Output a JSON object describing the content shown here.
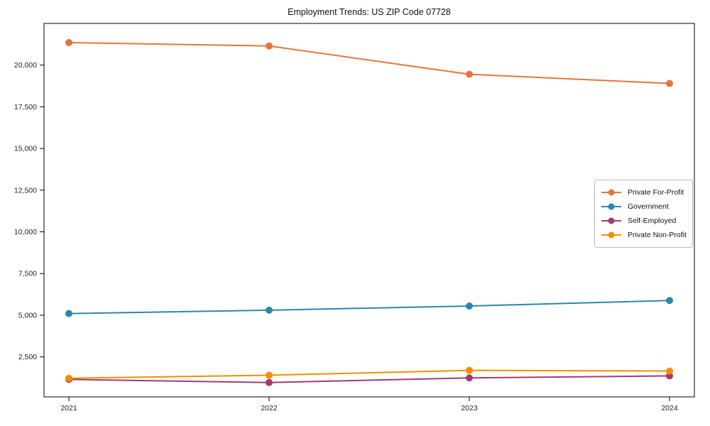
{
  "chart_data": {
    "type": "line",
    "title": "Employment Trends: US ZIP Code 07728",
    "xlabel": "",
    "ylabel": "",
    "x": [
      2021,
      2022,
      2023,
      2024
    ],
    "xtick_labels": [
      "2021",
      "2022",
      "2023",
      "2024"
    ],
    "yticks": [
      2500,
      5000,
      7500,
      10000,
      12500,
      15000,
      17500,
      20000
    ],
    "ytick_labels": [
      "2,500",
      "5,000",
      "7,500",
      "10,000",
      "12,500",
      "15,000",
      "17,500",
      "20,000"
    ],
    "ylim": [
      100,
      22500
    ],
    "grid": false,
    "legend_position": "center right",
    "marker": "circle",
    "series": [
      {
        "name": "Private For-Profit",
        "color": "#E8743B",
        "values": [
          21350,
          21150,
          19450,
          18900
        ]
      },
      {
        "name": "Government",
        "color": "#2E86AB",
        "values": [
          5100,
          5300,
          5550,
          5880
        ]
      },
      {
        "name": "Self-Employed",
        "color": "#A23B72",
        "values": [
          1150,
          960,
          1240,
          1360
        ]
      },
      {
        "name": "Private Non-Profit",
        "color": "#F18F01",
        "values": [
          1220,
          1400,
          1690,
          1650
        ]
      }
    ],
    "colors": {
      "frame": "#000000",
      "background": "#ffffff",
      "text": "#111111"
    }
  }
}
